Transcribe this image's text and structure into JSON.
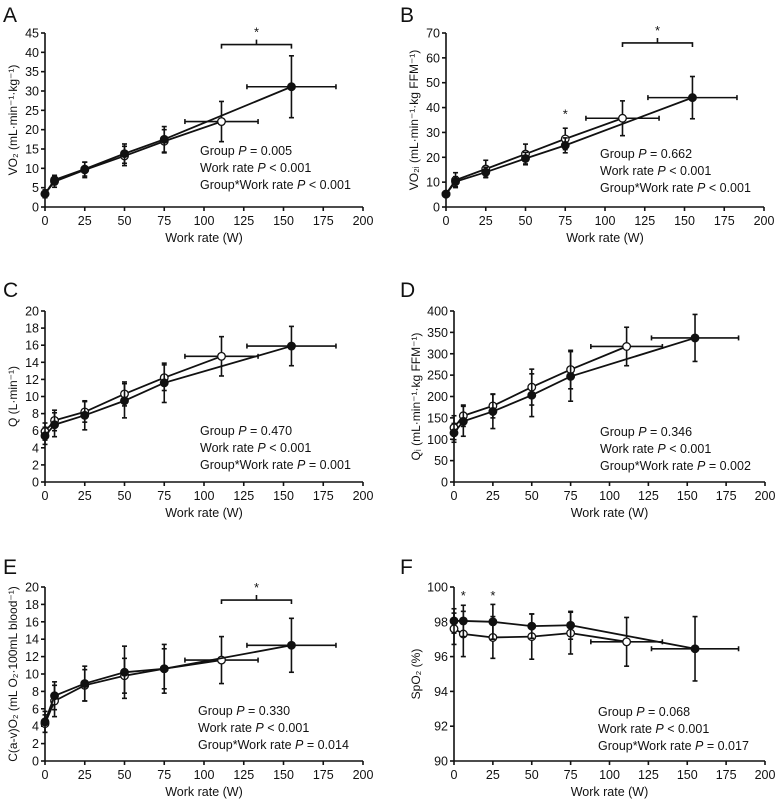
{
  "chart_data": [
    {
      "panel": "A",
      "type": "line",
      "xlabel": "Work rate (W)",
      "ylabel": "VO₂ (mL·min⁻¹·kg⁻¹)",
      "xlim": [
        0,
        200
      ],
      "xticks": [
        0,
        25,
        50,
        75,
        100,
        125,
        150,
        175,
        200
      ],
      "ylim": [
        0,
        45
      ],
      "yticks": [
        0,
        5,
        10,
        15,
        20,
        25,
        30,
        35,
        40,
        45
      ],
      "series": [
        {
          "name": "open",
          "marker": "open-circle",
          "x": [
            0,
            6,
            25,
            50,
            75,
            111
          ],
          "y": [
            3.4,
            6.6,
            9.6,
            13.2,
            17.0,
            22.1
          ],
          "yerr": [
            1,
            1.5,
            2,
            2.5,
            3,
            5.2
          ],
          "xerr_last": 23
        },
        {
          "name": "filled",
          "marker": "filled-circle",
          "x": [
            0,
            6,
            25,
            50,
            75,
            155
          ],
          "y": [
            3.4,
            7.0,
            9.8,
            13.8,
            17.5,
            31.1
          ],
          "yerr": [
            1,
            1.2,
            1.8,
            2.5,
            3.3,
            8
          ],
          "xerr_last": 28
        }
      ],
      "brackets": [
        {
          "from": 111,
          "to": 155,
          "y": 42,
          "label": "*"
        }
      ],
      "stars": [],
      "stats": [
        {
          "pre": "Group ",
          "p": "P",
          "post": " = 0.005"
        },
        {
          "pre": "Work rate ",
          "p": "P",
          "post": " < 0.001"
        },
        {
          "pre": "Group*Work rate ",
          "p": "P",
          "post": " < 0.001"
        }
      ]
    },
    {
      "panel": "B",
      "type": "line",
      "xlabel": "Work rate (W)",
      "ylabel": "VO₂ᵢ (mL·min⁻¹·kg FFM⁻¹)",
      "xlim": [
        0,
        200
      ],
      "xticks": [
        0,
        25,
        50,
        75,
        100,
        125,
        150,
        175,
        200
      ],
      "ylim": [
        0,
        70
      ],
      "yticks": [
        0,
        10,
        20,
        30,
        40,
        50,
        60,
        70
      ],
      "series": [
        {
          "name": "open",
          "marker": "open-circle",
          "x": [
            0,
            6,
            25,
            50,
            75,
            111
          ],
          "y": [
            5.2,
            10.8,
            15.3,
            21.3,
            27.4,
            35.7
          ],
          "yerr": [
            1,
            3,
            3.5,
            4,
            4.3,
            7
          ],
          "xerr_last": 23
        },
        {
          "name": "filled",
          "marker": "filled-circle",
          "x": [
            0,
            6,
            25,
            50,
            75,
            155
          ],
          "y": [
            5.2,
            10.2,
            14.0,
            19.5,
            24.8,
            44.0
          ],
          "yerr": [
            1,
            2,
            2,
            2.5,
            3,
            8.5
          ],
          "xerr_last": 28
        }
      ],
      "brackets": [
        {
          "from": 111,
          "to": 155,
          "y": 66,
          "label": "*"
        }
      ],
      "stars": [
        {
          "x": 75,
          "y": 38,
          "label": "*"
        }
      ],
      "stats": [
        {
          "pre": "Group ",
          "p": "P",
          "post": " = 0.662"
        },
        {
          "pre": "Work rate ",
          "p": "P",
          "post": " < 0.001"
        },
        {
          "pre": "Group*Work rate ",
          "p": "P",
          "post": " < 0.001"
        }
      ]
    },
    {
      "panel": "C",
      "type": "line",
      "xlabel": "Work rate (W)",
      "ylabel": "Q (L·min⁻¹)",
      "xlim": [
        0,
        200
      ],
      "xticks": [
        0,
        25,
        50,
        75,
        100,
        125,
        150,
        175,
        200
      ],
      "ylim": [
        0,
        20
      ],
      "yticks": [
        0,
        2,
        4,
        6,
        8,
        10,
        12,
        14,
        16,
        18,
        20
      ],
      "series": [
        {
          "name": "open",
          "marker": "open-circle",
          "x": [
            0,
            6,
            25,
            50,
            75,
            111
          ],
          "y": [
            5.9,
            7.2,
            8.2,
            10.3,
            12.2,
            14.7
          ],
          "yerr": [
            1,
            1.2,
            1.2,
            1.4,
            1.5,
            2.3
          ],
          "xerr_last": 23
        },
        {
          "name": "filled",
          "marker": "filled-circle",
          "x": [
            0,
            6,
            25,
            50,
            75,
            155
          ],
          "y": [
            5.4,
            6.7,
            7.8,
            9.5,
            11.6,
            15.9
          ],
          "yerr": [
            1,
            1.4,
            1.7,
            2,
            2.3,
            2.3
          ],
          "xerr_last": 28
        }
      ],
      "brackets": [],
      "stars": [],
      "stats": [
        {
          "pre": "Group ",
          "p": "P",
          "post": " = 0.470"
        },
        {
          "pre": "Work rate ",
          "p": "P",
          "post": " < 0.001"
        },
        {
          "pre": "Group*Work rate ",
          "p": "P",
          "post": " = 0.001"
        }
      ]
    },
    {
      "panel": "D",
      "type": "line",
      "xlabel": "Work rate (W)",
      "ylabel": "Qᵢ (mL·min⁻¹·kg FFM⁻¹)",
      "xlim": [
        0,
        200
      ],
      "xticks": [
        0,
        25,
        50,
        75,
        100,
        125,
        150,
        175,
        200
      ],
      "ylim": [
        0,
        400
      ],
      "yticks": [
        0,
        50,
        100,
        150,
        200,
        250,
        300,
        350,
        400
      ],
      "series": [
        {
          "name": "open",
          "marker": "open-circle",
          "x": [
            0,
            6,
            25,
            50,
            75,
            111
          ],
          "y": [
            127,
            155,
            178,
            222,
            263,
            317
          ],
          "yerr": [
            28,
            25,
            28,
            42,
            45,
            45
          ],
          "xerr_last": 23
        },
        {
          "name": "filled",
          "marker": "filled-circle",
          "x": [
            0,
            6,
            25,
            50,
            75,
            155
          ],
          "y": [
            115,
            142,
            165,
            203,
            247,
            337
          ],
          "yerr": [
            22,
            35,
            40,
            50,
            58,
            55
          ],
          "xerr_last": 28
        }
      ],
      "brackets": [],
      "stars": [],
      "stats": [
        {
          "pre": "Group ",
          "p": "P",
          "post": " = 0.346"
        },
        {
          "pre": "Work rate ",
          "p": "P",
          "post": " < 0.001"
        },
        {
          "pre": "Group*Work rate ",
          "p": "P",
          "post": " = 0.002"
        }
      ]
    },
    {
      "panel": "E",
      "type": "line",
      "xlabel": "Work rate (W)",
      "ylabel": "C(a-v)O₂ (mL O₂·100mL blood⁻¹)",
      "xlim": [
        0,
        200
      ],
      "xticks": [
        0,
        25,
        50,
        75,
        100,
        125,
        150,
        175,
        200
      ],
      "ylim": [
        0,
        20
      ],
      "yticks": [
        0,
        2,
        4,
        6,
        8,
        10,
        12,
        14,
        16,
        18,
        20
      ],
      "series": [
        {
          "name": "open",
          "marker": "open-circle",
          "x": [
            0,
            6,
            25,
            50,
            75,
            111
          ],
          "y": [
            4.3,
            6.9,
            8.7,
            9.8,
            10.6,
            11.6
          ],
          "yerr": [
            1,
            1.8,
            1.8,
            2,
            2.3,
            2.7
          ],
          "xerr_last": 23
        },
        {
          "name": "filled",
          "marker": "filled-circle",
          "x": [
            0,
            6,
            25,
            50,
            75,
            155
          ],
          "y": [
            4.5,
            7.5,
            8.9,
            10.2,
            10.6,
            13.3
          ],
          "yerr": [
            1.2,
            1.6,
            2,
            3,
            2.8,
            3.1
          ],
          "xerr_last": 28
        }
      ],
      "brackets": [
        {
          "from": 111,
          "to": 155,
          "y": 18.5,
          "label": "*"
        }
      ],
      "stars": [],
      "stats": [
        {
          "pre": "Group ",
          "p": "P",
          "post": " = 0.330"
        },
        {
          "pre": "Work rate ",
          "p": "P",
          "post": " < 0.001"
        },
        {
          "pre": "Group*Work rate ",
          "p": "P",
          "post": " = 0.014"
        }
      ]
    },
    {
      "panel": "F",
      "type": "line",
      "xlabel": "Work rate (W)",
      "ylabel": "SpO₂ (%)",
      "xlim": [
        0,
        200
      ],
      "xticks": [
        0,
        25,
        50,
        75,
        100,
        125,
        150,
        175,
        200
      ],
      "ylim": [
        90,
        100
      ],
      "yticks": [
        90,
        92,
        94,
        96,
        98,
        100
      ],
      "series": [
        {
          "name": "open",
          "marker": "open-circle",
          "x": [
            0,
            6,
            25,
            50,
            75,
            111
          ],
          "y": [
            97.6,
            97.3,
            97.1,
            97.15,
            97.35,
            96.85
          ],
          "yerr": [
            0.9,
            1.3,
            1.2,
            1.3,
            1.2,
            1.4
          ],
          "xerr_last": 23
        },
        {
          "name": "filled",
          "marker": "filled-circle",
          "x": [
            0,
            6,
            25,
            50,
            75,
            155
          ],
          "y": [
            98.05,
            98.05,
            98.0,
            97.75,
            97.8,
            96.45
          ],
          "yerr": [
            0.7,
            0.9,
            1.0,
            0.7,
            0.8,
            1.85
          ],
          "xerr_last": 28
        }
      ],
      "brackets": [],
      "stars": [
        {
          "x": 6,
          "y": 99.6,
          "label": "*"
        },
        {
          "x": 25,
          "y": 99.6,
          "label": "*"
        }
      ],
      "stats": [
        {
          "pre": "Group ",
          "p": "P",
          "post": " = 0.068"
        },
        {
          "pre": "Work rate ",
          "p": "P",
          "post": " < 0.001"
        },
        {
          "pre": "Group*Work rate ",
          "p": "P",
          "post": " = 0.017"
        }
      ]
    }
  ]
}
